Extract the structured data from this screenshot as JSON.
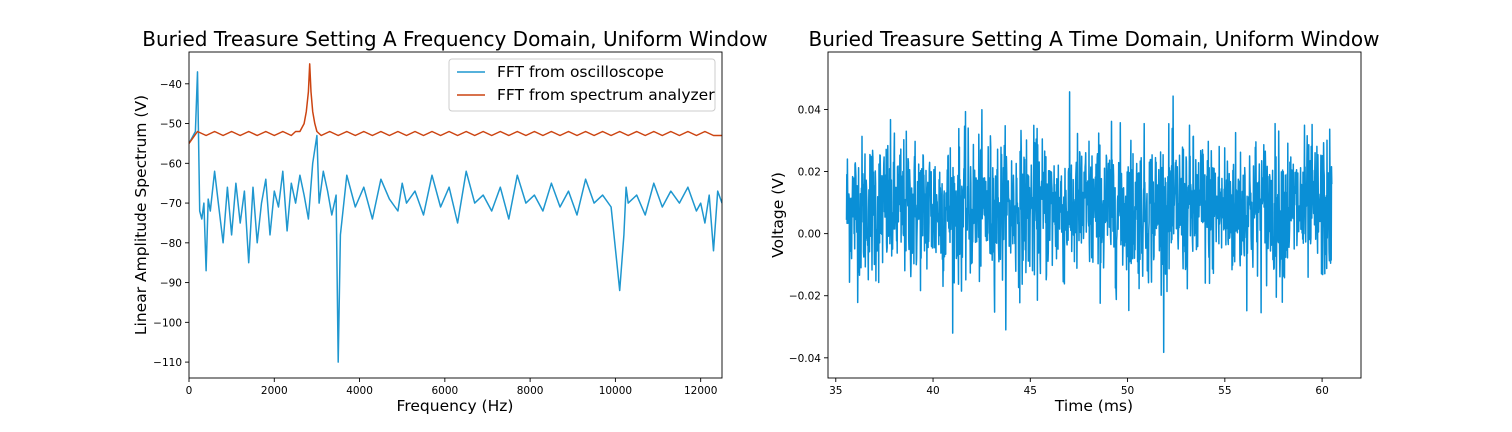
{
  "chart_data": [
    {
      "type": "line",
      "title": "Buried Treasure Setting A Frequency Domain, Uniform Window",
      "xlabel": "Frequency (Hz)",
      "ylabel": "Linear Amplitude Spectrum (V)",
      "xlim": [
        0,
        12500
      ],
      "ylim": [
        -114,
        -32
      ],
      "xticks": [
        0,
        2000,
        4000,
        6000,
        8000,
        10000,
        12000
      ],
      "yticks": [
        -40,
        -50,
        -60,
        -70,
        -80,
        -90,
        -100,
        -110
      ],
      "grid": false,
      "legend_position": "top-right",
      "series": [
        {
          "name": "FFT from oscilloscope",
          "color": "#1f97cf",
          "x": [
            0,
            150,
            200,
            250,
            300,
            350,
            400,
            450,
            500,
            600,
            700,
            800,
            900,
            1000,
            1100,
            1200,
            1300,
            1400,
            1500,
            1600,
            1700,
            1800,
            1900,
            2000,
            2100,
            2200,
            2300,
            2400,
            2500,
            2600,
            2700,
            2800,
            2900,
            3000,
            3050,
            3150,
            3250,
            3350,
            3450,
            3500,
            3550,
            3700,
            3900,
            4100,
            4300,
            4500,
            4700,
            4900,
            5000,
            5100,
            5300,
            5500,
            5700,
            5900,
            6100,
            6300,
            6500,
            6700,
            6900,
            7100,
            7300,
            7500,
            7700,
            7900,
            8100,
            8300,
            8500,
            8700,
            8900,
            9100,
            9300,
            9500,
            9700,
            9900,
            10100,
            10200,
            10250,
            10300,
            10500,
            10700,
            10900,
            11100,
            11300,
            11500,
            11700,
            11900,
            12000,
            12100,
            12200,
            12300,
            12400,
            12500
          ],
          "y": [
            -55,
            -52,
            -37,
            -72,
            -74,
            -70,
            -87,
            -69,
            -72,
            -62,
            -71,
            -80,
            -66,
            -78,
            -65,
            -75,
            -67,
            -85,
            -66,
            -80,
            -70,
            -64,
            -78,
            -67,
            -71,
            -62,
            -77,
            -65,
            -70,
            -63,
            -68,
            -74,
            -60,
            -53,
            -70,
            -62,
            -67,
            -73,
            -68,
            -110,
            -78,
            -63,
            -71,
            -66,
            -74,
            -64,
            -69,
            -72,
            -65,
            -70,
            -67,
            -73,
            -63,
            -71,
            -66,
            -75,
            -62,
            -70,
            -68,
            -72,
            -66,
            -74,
            -63,
            -70,
            -68,
            -72,
            -65,
            -71,
            -67,
            -73,
            -64,
            -70,
            -68,
            -71,
            -92,
            -78,
            -66,
            -70,
            -68,
            -73,
            -65,
            -71,
            -67,
            -70,
            -66,
            -72,
            -70,
            -75,
            -68,
            -82,
            -67,
            -70
          ]
        },
        {
          "name": "FFT from spectrum analyzer",
          "color": "#cc4411",
          "x": [
            0,
            200,
            400,
            600,
            800,
            1000,
            1200,
            1400,
            1600,
            1800,
            2000,
            2200,
            2400,
            2500,
            2600,
            2700,
            2750,
            2800,
            2830,
            2860,
            2900,
            2950,
            3000,
            3100,
            3300,
            3500,
            3700,
            3900,
            4100,
            4300,
            4500,
            4700,
            4900,
            5100,
            5300,
            5500,
            5700,
            5900,
            6100,
            6300,
            6500,
            6700,
            6900,
            7100,
            7300,
            7500,
            7700,
            7900,
            8100,
            8300,
            8500,
            8700,
            8900,
            9100,
            9300,
            9500,
            9700,
            9900,
            10100,
            10300,
            10500,
            10700,
            10900,
            11100,
            11300,
            11500,
            11700,
            11900,
            12100,
            12300,
            12500
          ],
          "y": [
            -55,
            -52,
            -53,
            -52,
            -53,
            -52,
            -53,
            -52,
            -53,
            -52,
            -53,
            -52,
            -53,
            -52,
            -52,
            -50,
            -47,
            -42,
            -35,
            -42,
            -47,
            -50,
            -52,
            -53,
            -52,
            -53,
            -52,
            -53,
            -52,
            -53,
            -52,
            -53,
            -52,
            -53,
            -52,
            -53,
            -52,
            -53,
            -52,
            -53,
            -52,
            -53,
            -52,
            -53,
            -52,
            -53,
            -52,
            -53,
            -52,
            -53,
            -52,
            -53,
            -52,
            -53,
            -52,
            -53,
            -52,
            -53,
            -52,
            -53,
            -52,
            -53,
            -52,
            -53,
            -52,
            -53,
            -52,
            -53,
            -52,
            -53,
            -53
          ]
        }
      ]
    },
    {
      "type": "line",
      "title": "Buried Treasure Setting A Time Domain, Uniform Window",
      "xlabel": "Time (ms)",
      "ylabel": "Voltage (V)",
      "xlim": [
        34.6,
        62.0
      ],
      "ylim": [
        -0.0465,
        0.0585
      ],
      "xticks": [
        35,
        40,
        45,
        50,
        55,
        60
      ],
      "yticks": [
        0.04,
        0.02,
        0.0,
        -0.02,
        -0.04
      ],
      "grid": false,
      "series": [
        {
          "color": "#0a8fd6",
          "x_range": [
            35.55,
            60.5
          ],
          "mean": 0.008,
          "min": -0.04,
          "max": 0.054
        }
      ]
    }
  ]
}
